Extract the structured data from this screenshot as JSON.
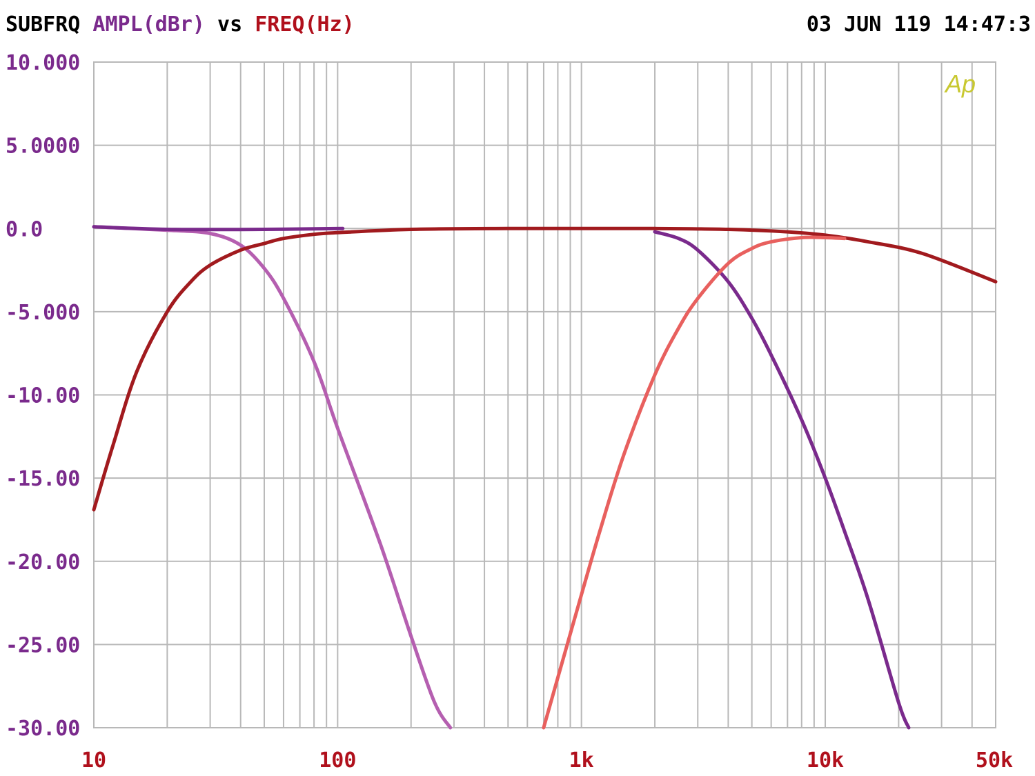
{
  "header": {
    "left": [
      {
        "text": "SUBFRQ",
        "color": "#000000"
      },
      {
        "text": " AMPL(dBr)",
        "color": "#7a2a8c"
      },
      {
        "text": " vs ",
        "color": "#000000"
      },
      {
        "text": "FREQ(Hz)",
        "color": "#b0101c"
      }
    ],
    "right": "03 JUN 119 14:47:3"
  },
  "logo": "Ap",
  "colors": {
    "y_tick_labels": "#7a2a8c",
    "x_tick_labels": "#b0101c",
    "grid": "#b8b8b8",
    "logo": "#c8c830"
  },
  "chart_data": {
    "type": "line",
    "x_scale": "log",
    "xlim": [
      10,
      50000
    ],
    "ylim": [
      -30,
      10
    ],
    "grid": true,
    "y_ticks": [
      {
        "value": 10,
        "label": "10.000"
      },
      {
        "value": 5,
        "label": "5.0000"
      },
      {
        "value": 0,
        "label": "0.0"
      },
      {
        "value": -5,
        "label": "-5.000"
      },
      {
        "value": -10,
        "label": "-10.00"
      },
      {
        "value": -15,
        "label": "-15.00"
      },
      {
        "value": -20,
        "label": "-20.00"
      },
      {
        "value": -25,
        "label": "-25.00"
      },
      {
        "value": -30,
        "label": "-30.00"
      }
    ],
    "x_ticks": [
      {
        "value": 10,
        "label": "10"
      },
      {
        "value": 100,
        "label": "100"
      },
      {
        "value": 1000,
        "label": "1k"
      },
      {
        "value": 10000,
        "label": "10k"
      },
      {
        "value": 50000,
        "label": "50k"
      }
    ],
    "series": [
      {
        "color": "#b55fb0",
        "x": [
          10,
          20,
          30,
          40,
          50,
          60,
          80,
          100,
          150,
          200,
          250,
          290
        ],
        "y": [
          0.1,
          -0.1,
          -0.3,
          -1.0,
          -2.4,
          -4.2,
          -8.0,
          -12.0,
          -19.0,
          -24.5,
          -28.5,
          -30
        ]
      },
      {
        "color": "#7a2a8c",
        "x": [
          10,
          20,
          50,
          105
        ],
        "y": [
          0.1,
          -0.05,
          -0.05,
          0.0
        ]
      },
      {
        "color": "#a11a1e",
        "x": [
          10,
          12,
          15,
          20,
          25,
          30,
          40,
          50,
          60,
          80,
          100,
          200,
          500,
          1000,
          2000,
          4000,
          7000,
          10000,
          15000,
          25000,
          50000
        ],
        "y": [
          -16.9,
          -13.0,
          -8.6,
          -5.0,
          -3.2,
          -2.2,
          -1.3,
          -0.9,
          -0.6,
          -0.35,
          -0.25,
          -0.05,
          0,
          0,
          0,
          -0.05,
          -0.2,
          -0.4,
          -0.8,
          -1.5,
          -3.2
        ]
      },
      {
        "color": "#7a2a8c",
        "x": [
          2000,
          2500,
          3000,
          4000,
          5000,
          6000,
          8000,
          10000,
          12000,
          15000,
          20000,
          22000
        ],
        "y": [
          -0.2,
          -0.6,
          -1.3,
          -3.2,
          -5.4,
          -7.6,
          -11.5,
          -15.0,
          -18.2,
          -22.3,
          -28.5,
          -30
        ]
      },
      {
        "color": "#e8605e",
        "x": [
          700,
          800,
          1000,
          1200,
          1500,
          2000,
          2500,
          3000,
          4000,
          5000,
          6000,
          8000,
          10000,
          12000
        ],
        "y": [
          -30,
          -27.0,
          -22.0,
          -18.0,
          -13.5,
          -8.8,
          -6.0,
          -4.2,
          -2.1,
          -1.2,
          -0.8,
          -0.55,
          -0.55,
          -0.6
        ]
      }
    ]
  }
}
